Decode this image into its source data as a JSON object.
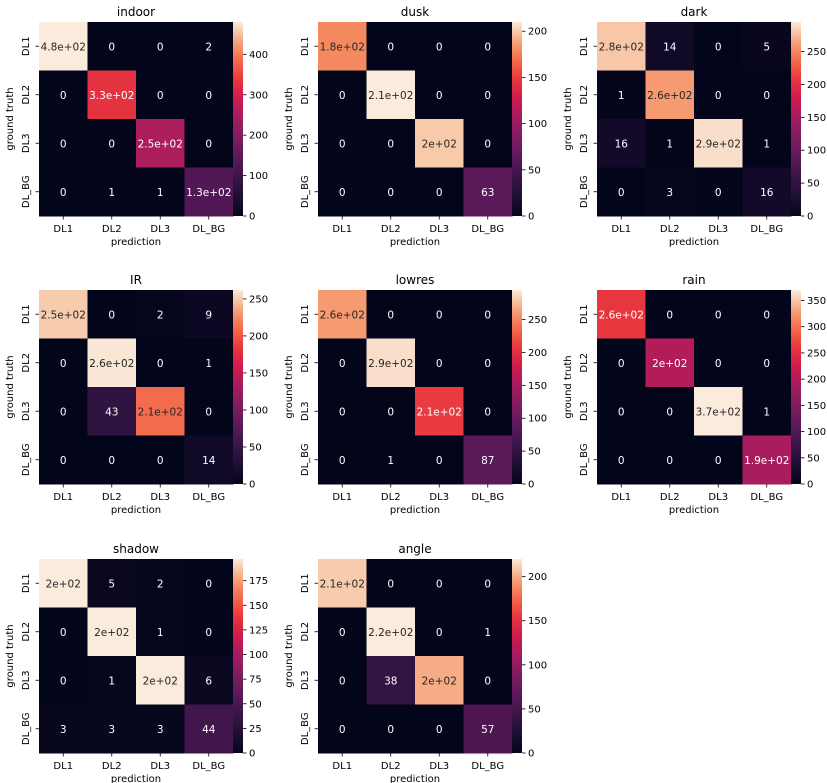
{
  "chart_data": [
    {
      "type": "heatmap",
      "title": "indoor",
      "xlabel": "prediction",
      "ylabel": "ground truth",
      "x_categories": [
        "DL1",
        "DL2",
        "DL3",
        "DL_BG"
      ],
      "y_categories": [
        "DL1",
        "DL2",
        "DL3",
        "DL_BG"
      ],
      "values": [
        [
          480,
          0,
          0,
          2
        ],
        [
          0,
          330,
          0,
          0
        ],
        [
          0,
          0,
          250,
          0
        ],
        [
          0,
          1,
          1,
          130
        ]
      ],
      "cell_labels": [
        [
          "4.8e+02",
          "0",
          "0",
          "2"
        ],
        [
          "0",
          "3.3e+02",
          "0",
          "0"
        ],
        [
          "0",
          "0",
          "2.5e+02",
          "0"
        ],
        [
          "0",
          "1",
          "1",
          "1.3e+02"
        ]
      ],
      "colorbar": {
        "min": 0,
        "max": 480,
        "ticks": [
          0,
          100,
          200,
          300,
          400
        ]
      }
    },
    {
      "type": "heatmap",
      "title": "dusk",
      "xlabel": "prediction",
      "ylabel": "ground truth",
      "x_categories": [
        "DL1",
        "DL2",
        "DL3",
        "DL_BG"
      ],
      "y_categories": [
        "DL1",
        "DL2",
        "DL3",
        "DL_BG"
      ],
      "values": [
        [
          180,
          0,
          0,
          0
        ],
        [
          0,
          210,
          0,
          0
        ],
        [
          0,
          0,
          200,
          0
        ],
        [
          0,
          0,
          0,
          63
        ]
      ],
      "cell_labels": [
        [
          "1.8e+02",
          "0",
          "0",
          "0"
        ],
        [
          "0",
          "2.1e+02",
          "0",
          "0"
        ],
        [
          "0",
          "0",
          "2e+02",
          "0"
        ],
        [
          "0",
          "0",
          "0",
          "63"
        ]
      ],
      "colorbar": {
        "min": 0,
        "max": 210,
        "ticks": [
          0,
          50,
          100,
          150,
          200
        ]
      }
    },
    {
      "type": "heatmap",
      "title": "dark",
      "xlabel": "prediction",
      "ylabel": "ground truth",
      "x_categories": [
        "DL1",
        "DL2",
        "DL3",
        "DL_BG"
      ],
      "y_categories": [
        "DL1",
        "DL2",
        "DL3",
        "DL_BG"
      ],
      "values": [
        [
          280,
          14,
          0,
          5
        ],
        [
          1,
          260,
          0,
          0
        ],
        [
          16,
          1,
          290,
          1
        ],
        [
          0,
          3,
          0,
          16
        ]
      ],
      "cell_labels": [
        [
          "2.8e+02",
          "14",
          "0",
          "5"
        ],
        [
          "1",
          "2.6e+02",
          "0",
          "0"
        ],
        [
          "16",
          "1",
          "2.9e+02",
          "1"
        ],
        [
          "0",
          "3",
          "0",
          "16"
        ]
      ],
      "colorbar": {
        "min": 0,
        "max": 295,
        "ticks": [
          0,
          50,
          100,
          150,
          200,
          250
        ]
      }
    },
    {
      "type": "heatmap",
      "title": "IR",
      "xlabel": "prediction",
      "ylabel": "ground truth",
      "x_categories": [
        "DL1",
        "DL2",
        "DL3",
        "DL_BG"
      ],
      "y_categories": [
        "DL1",
        "DL2",
        "DL3",
        "DL_BG"
      ],
      "values": [
        [
          250,
          0,
          2,
          9
        ],
        [
          0,
          260,
          0,
          1
        ],
        [
          0,
          43,
          210,
          0
        ],
        [
          0,
          0,
          0,
          14
        ]
      ],
      "cell_labels": [
        [
          "2.5e+02",
          "0",
          "2",
          "9"
        ],
        [
          "0",
          "2.6e+02",
          "0",
          "1"
        ],
        [
          "0",
          "43",
          "2.1e+02",
          "0"
        ],
        [
          "0",
          "0",
          "0",
          "14"
        ]
      ],
      "colorbar": {
        "min": 0,
        "max": 262,
        "ticks": [
          0,
          50,
          100,
          150,
          200,
          250
        ]
      }
    },
    {
      "type": "heatmap",
      "title": "lowres",
      "xlabel": "prediction",
      "ylabel": "ground truth",
      "x_categories": [
        "DL1",
        "DL2",
        "DL3",
        "DL_BG"
      ],
      "y_categories": [
        "DL1",
        "DL2",
        "DL3",
        "DL_BG"
      ],
      "values": [
        [
          260,
          0,
          0,
          0
        ],
        [
          0,
          290,
          0,
          0
        ],
        [
          0,
          0,
          210,
          0
        ],
        [
          0,
          1,
          0,
          87
        ]
      ],
      "cell_labels": [
        [
          "2.6e+02",
          "0",
          "0",
          "0"
        ],
        [
          "0",
          "2.9e+02",
          "0",
          "0"
        ],
        [
          "0",
          "0",
          "2.1e+02",
          "0"
        ],
        [
          "0",
          "1",
          "0",
          "87"
        ]
      ],
      "colorbar": {
        "min": 0,
        "max": 295,
        "ticks": [
          0,
          50,
          100,
          150,
          200,
          250
        ]
      }
    },
    {
      "type": "heatmap",
      "title": "rain",
      "xlabel": "prediction",
      "ylabel": "ground truth",
      "x_categories": [
        "DL1",
        "DL2",
        "DL3",
        "DL_BG"
      ],
      "y_categories": [
        "DL1",
        "DL2",
        "DL3",
        "DL_BG"
      ],
      "values": [
        [
          260,
          0,
          0,
          0
        ],
        [
          0,
          200,
          0,
          0
        ],
        [
          0,
          0,
          370,
          1
        ],
        [
          0,
          0,
          0,
          190
        ]
      ],
      "cell_labels": [
        [
          "2.6e+02",
          "0",
          "0",
          "0"
        ],
        [
          "0",
          "2e+02",
          "0",
          "0"
        ],
        [
          "0",
          "0",
          "3.7e+02",
          "1"
        ],
        [
          "0",
          "0",
          "0",
          "1.9e+02"
        ]
      ],
      "colorbar": {
        "min": 0,
        "max": 370,
        "ticks": [
          0,
          50,
          100,
          150,
          200,
          250,
          300,
          350
        ]
      }
    },
    {
      "type": "heatmap",
      "title": "shadow",
      "xlabel": "prediction",
      "ylabel": "ground truth",
      "x_categories": [
        "DL1",
        "DL2",
        "DL3",
        "DL_BG"
      ],
      "y_categories": [
        "DL1",
        "DL2",
        "DL3",
        "DL_BG"
      ],
      "values": [
        [
          200,
          5,
          2,
          0
        ],
        [
          0,
          200,
          1,
          0
        ],
        [
          0,
          1,
          200,
          6
        ],
        [
          3,
          3,
          3,
          44
        ]
      ],
      "cell_labels": [
        [
          "2e+02",
          "5",
          "2",
          "0"
        ],
        [
          "0",
          "2e+02",
          "1",
          "0"
        ],
        [
          "0",
          "1",
          "2e+02",
          "6"
        ],
        [
          "3",
          "3",
          "3",
          "44"
        ]
      ],
      "colorbar": {
        "min": 0,
        "max": 197,
        "ticks": [
          0,
          25,
          50,
          75,
          100,
          125,
          150,
          175
        ]
      }
    },
    {
      "type": "heatmap",
      "title": "angle",
      "xlabel": "prediction",
      "ylabel": "ground truth",
      "x_categories": [
        "DL1",
        "DL2",
        "DL3",
        "DL_BG"
      ],
      "y_categories": [
        "DL1",
        "DL2",
        "DL3",
        "DL_BG"
      ],
      "values": [
        [
          210,
          0,
          0,
          0
        ],
        [
          0,
          220,
          0,
          1
        ],
        [
          0,
          38,
          200,
          0
        ],
        [
          0,
          0,
          0,
          57
        ]
      ],
      "cell_labels": [
        [
          "2.1e+02",
          "0",
          "0",
          "0"
        ],
        [
          "0",
          "2.2e+02",
          "0",
          "1"
        ],
        [
          "0",
          "38",
          "2e+02",
          "0"
        ],
        [
          "0",
          "0",
          "0",
          "57"
        ]
      ],
      "colorbar": {
        "min": 0,
        "max": 220,
        "ticks": [
          0,
          50,
          100,
          150,
          200
        ]
      }
    }
  ]
}
